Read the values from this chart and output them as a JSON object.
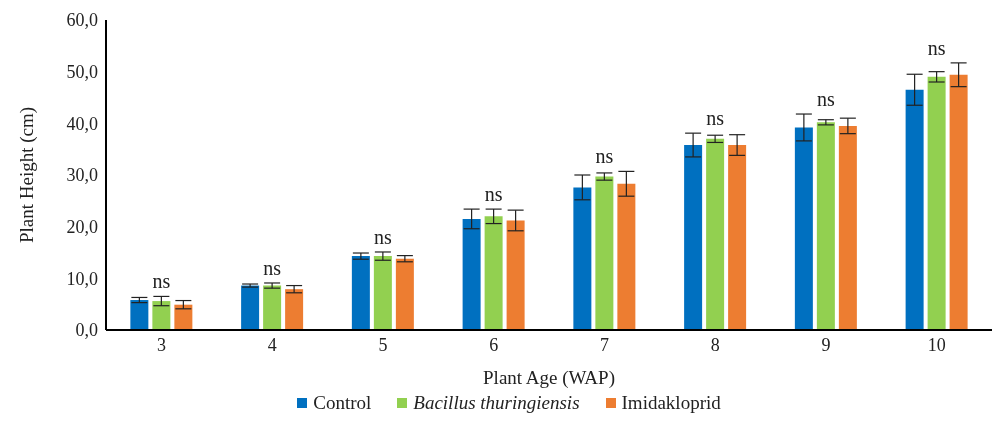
{
  "chart_data": {
    "type": "bar",
    "xlabel": "Plant Age (WAP)",
    "ylabel": "Plant Height (cm)",
    "categories": [
      "3",
      "4",
      "5",
      "6",
      "7",
      "8",
      "9",
      "10"
    ],
    "series": [
      {
        "name": "Control",
        "color": "#0070c0",
        "values": [
          5.8,
          8.6,
          14.3,
          21.5,
          27.6,
          35.8,
          39.2,
          46.5
        ],
        "errors": [
          0.5,
          0.3,
          0.6,
          1.9,
          2.4,
          2.3,
          2.6,
          3.0
        ]
      },
      {
        "name": "Bacillus thuringiensis",
        "color": "#92d050",
        "values": [
          5.6,
          8.6,
          14.3,
          22.0,
          29.7,
          37.0,
          40.2,
          49.0
        ],
        "errors": [
          0.9,
          0.5,
          0.8,
          1.4,
          0.7,
          0.7,
          0.5,
          1.0
        ]
      },
      {
        "name": "Imidakloprid",
        "color": "#ed7d31",
        "values": [
          4.9,
          7.9,
          13.8,
          21.2,
          28.3,
          35.8,
          39.5,
          49.4
        ],
        "errors": [
          0.8,
          0.7,
          0.6,
          2.0,
          2.4,
          2.0,
          1.5,
          2.3
        ]
      }
    ],
    "ylim": [
      0,
      60
    ],
    "yticks": [
      {
        "value": 0,
        "label": "0,0"
      },
      {
        "value": 10,
        "label": "10,0"
      },
      {
        "value": 20,
        "label": "20,0"
      },
      {
        "value": 30,
        "label": "30,0"
      },
      {
        "value": 40,
        "label": "40,0"
      },
      {
        "value": 50,
        "label": "50,0"
      },
      {
        "value": 60,
        "label": "60,0"
      }
    ],
    "annotations": [
      "ns",
      "ns",
      "ns",
      "ns",
      "ns",
      "ns",
      "ns",
      "ns"
    ],
    "grid": false,
    "legend": "bottom"
  }
}
